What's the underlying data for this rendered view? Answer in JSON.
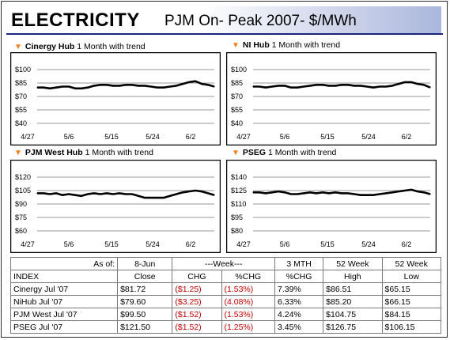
{
  "header": {
    "title": "ELECTRICITY",
    "subtitle": "PJM On- Peak 2007- $/MWh"
  },
  "chart_data": [
    {
      "type": "line",
      "title_bold": "Cinergy Hub",
      "title_rest": "1 Month with trend",
      "x_ticks": [
        "4/27",
        "5/6",
        "5/15",
        "5/24",
        "6/2"
      ],
      "y_ticks": [
        "$100",
        "$85",
        "$70",
        "$55",
        "$40"
      ],
      "ylim": [
        40,
        100
      ],
      "values": [
        80,
        80,
        79,
        80,
        81,
        81,
        79,
        79,
        80,
        82,
        83,
        83,
        82,
        82,
        83,
        83,
        82,
        82,
        81,
        80,
        80,
        81,
        82,
        84,
        86,
        87,
        84,
        83,
        81
      ]
    },
    {
      "type": "line",
      "title_bold": "NI Hub",
      "title_rest": "1 Month with trend",
      "x_ticks": [
        "4/27",
        "5/6",
        "5/15",
        "5/24",
        "6/2"
      ],
      "y_ticks": [
        "$100",
        "$85",
        "$70",
        "$55",
        "$40"
      ],
      "ylim": [
        40,
        100
      ],
      "values": [
        81,
        81,
        80,
        81,
        82,
        82,
        80,
        80,
        81,
        82,
        83,
        83,
        82,
        82,
        83,
        83,
        82,
        82,
        81,
        80,
        81,
        81,
        82,
        84,
        86,
        86,
        84,
        83,
        80
      ]
    },
    {
      "type": "line",
      "title_bold": "PJM West Hub",
      "title_rest": "1 Month with trend",
      "x_ticks": [
        "4/27",
        "5/6",
        "5/15",
        "5/24",
        "6/2"
      ],
      "y_ticks": [
        "$120",
        "$105",
        "$90",
        "$75",
        "$60"
      ],
      "ylim": [
        60,
        120
      ],
      "values": [
        102,
        102,
        101,
        102,
        100,
        101,
        100,
        99,
        101,
        102,
        101,
        102,
        101,
        102,
        101,
        101,
        99,
        97,
        97,
        97,
        97,
        99,
        101,
        103,
        104,
        105,
        104,
        102,
        100
      ]
    },
    {
      "type": "line",
      "title_bold": "PSEG",
      "title_rest": "1 Month with trend",
      "x_ticks": [
        "4/27",
        "5/6",
        "5/15",
        "5/24",
        "6/2"
      ],
      "y_ticks": [
        "$140",
        "$125",
        "$110",
        "$95",
        "$80"
      ],
      "ylim": [
        80,
        140
      ],
      "values": [
        123,
        123,
        122,
        123,
        124,
        123,
        121,
        121,
        122,
        123,
        122,
        123,
        122,
        123,
        122,
        122,
        121,
        120,
        120,
        120,
        121,
        122,
        123,
        124,
        125,
        126,
        124,
        123,
        121
      ]
    }
  ],
  "table": {
    "header1": [
      "As of:",
      "8-Jun",
      "---Week---",
      "3 MTH",
      "52 Week",
      "52 Week"
    ],
    "header2": [
      "INDEX",
      "Close",
      "CHG",
      "%CHG",
      "%CHG",
      "High",
      "Low"
    ],
    "rows": [
      [
        "Cinergy Jul '07",
        "$81.72",
        "($1.25)",
        "(1.53%)",
        "7.39%",
        "$86.51",
        "$65.15"
      ],
      [
        "NiHub Jul '07",
        "$79.60",
        "($3.25)",
        "(4.08%)",
        "6.33%",
        "$85.20",
        "$66.15"
      ],
      [
        "PJM West Jul '07",
        "$99.50",
        "($1.52)",
        "(1.53%)",
        "4.24%",
        "$104.75",
        "$84.15"
      ],
      [
        "PSEG Jul '07",
        "$121.50",
        "($1.52)",
        "(1.25%)",
        "3.45%",
        "$126.75",
        "$106.15"
      ]
    ]
  }
}
